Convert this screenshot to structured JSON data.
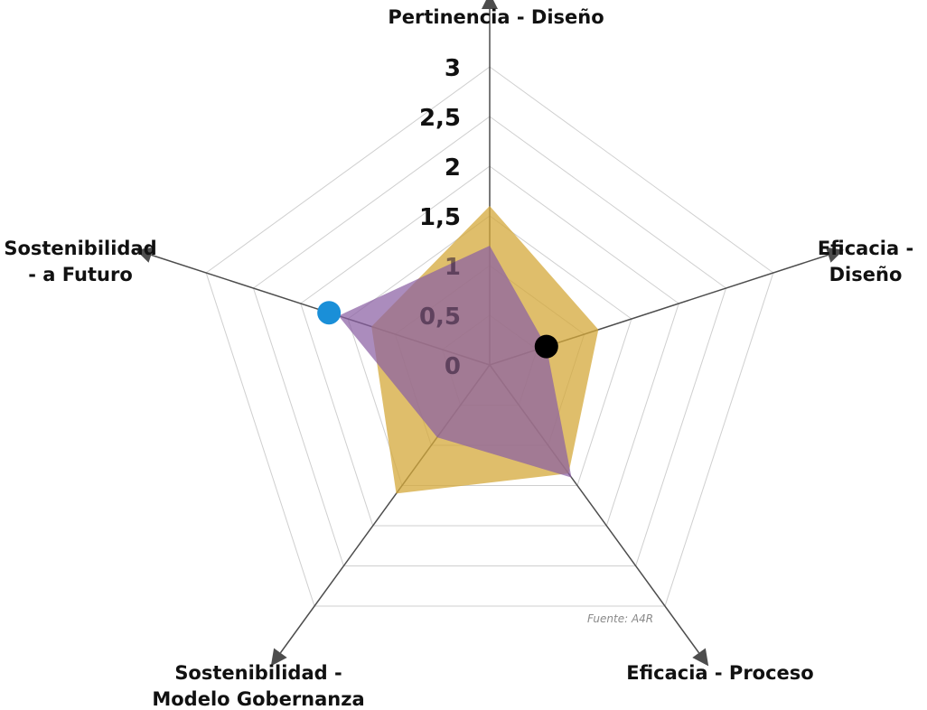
{
  "chart_data": {
    "type": "radar",
    "axes": [
      {
        "label_lines": [
          "Pertinencia - Diseño"
        ]
      },
      {
        "label_lines": [
          "Eficacia -",
          "Diseño"
        ]
      },
      {
        "label_lines": [
          "Eficacia - Proceso"
        ]
      },
      {
        "label_lines": [
          "Sostenibilidad -",
          "Modelo Gobernanza"
        ]
      },
      {
        "label_lines": [
          "Sostenibilidad",
          "- a Futuro"
        ]
      }
    ],
    "range": [
      0,
      3
    ],
    "ticks": [
      "0",
      "0,5",
      "1",
      "1,5",
      "2",
      "2,5",
      "3"
    ],
    "tick_values": [
      0,
      0.5,
      1,
      1.5,
      2,
      2.5,
      3
    ],
    "series": [
      {
        "values": [
          1.6,
          1.15,
          1.35,
          1.6,
          1.25
        ],
        "color": "#d4a83a"
      },
      {
        "values": [
          1.2,
          0.6,
          1.4,
          0.9,
          1.6
        ],
        "color": "#8a5fa3"
      }
    ],
    "markers": [
      {
        "axis": 1,
        "value": 0.6,
        "color": "#000000"
      },
      {
        "axis": 4,
        "value": 1.7,
        "color": "#1a8fd8"
      }
    ],
    "source": "Fuente: A4R"
  }
}
